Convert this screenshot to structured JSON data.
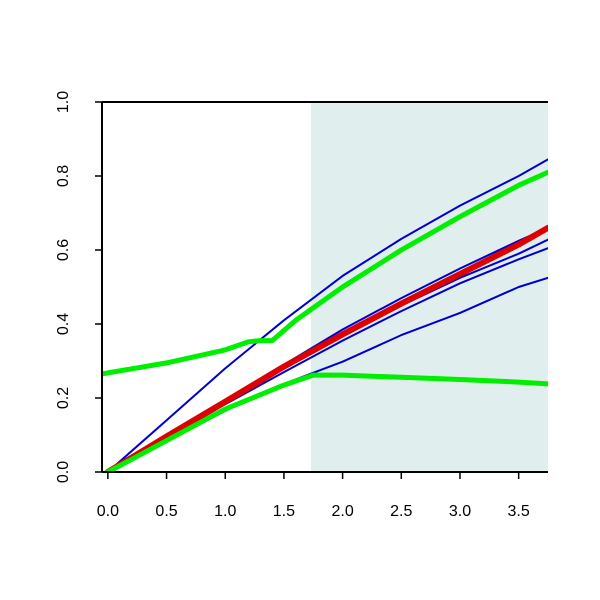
{
  "chart_data": {
    "type": "line",
    "title": "",
    "xlabel": "",
    "ylabel": "",
    "xlim": [
      -0.05,
      3.75
    ],
    "ylim": [
      0.0,
      1.0
    ],
    "grid": false,
    "legend": "none",
    "x_ticks": [
      0.0,
      0.5,
      1.0,
      1.5,
      2.0,
      2.5,
      3.0,
      3.5
    ],
    "x_tick_labels": [
      "0.0",
      "0.5",
      "1.0",
      "1.5",
      "2.0",
      "2.5",
      "3.0",
      "3.5"
    ],
    "y_ticks": [
      0.0,
      0.2,
      0.4,
      0.6,
      0.8,
      1.0
    ],
    "y_tick_labels": [
      "0.0",
      "0.2",
      "0.4",
      "0.6",
      "0.8",
      "1.0"
    ],
    "shaded_region": {
      "x_from": 1.73,
      "x_to": 3.75,
      "color": "#e0eeee"
    },
    "series": [
      {
        "color": "#0000cc",
        "width": 2,
        "x": [
          0.0,
          0.5,
          1.0,
          1.5,
          2.0,
          2.5,
          3.0,
          3.5,
          3.75
        ],
        "y": [
          0.0,
          0.14,
          0.28,
          0.41,
          0.53,
          0.63,
          0.72,
          0.8,
          0.845
        ]
      },
      {
        "color": "#0000cc",
        "width": 2,
        "x": [
          0.0,
          0.5,
          1.0,
          1.5,
          2.0,
          2.5,
          3.0,
          3.5,
          3.75
        ],
        "y": [
          0.0,
          0.098,
          0.195,
          0.29,
          0.385,
          0.47,
          0.55,
          0.625,
          0.66
        ]
      },
      {
        "color": "#0000cc",
        "width": 2,
        "x": [
          0.0,
          0.5,
          1.0,
          1.5,
          2.0,
          2.5,
          3.0,
          3.5,
          3.75
        ],
        "y": [
          0.0,
          0.095,
          0.19,
          0.28,
          0.37,
          0.45,
          0.525,
          0.59,
          0.628
        ]
      },
      {
        "color": "#0000cc",
        "width": 2,
        "x": [
          0.0,
          0.5,
          1.0,
          1.5,
          2.0,
          2.5,
          3.0,
          3.5,
          3.75
        ],
        "y": [
          0.0,
          0.092,
          0.183,
          0.27,
          0.355,
          0.435,
          0.51,
          0.575,
          0.605
        ]
      },
      {
        "color": "#0000cc",
        "width": 2,
        "x": [
          0.0,
          0.5,
          1.0,
          1.5,
          2.0,
          2.5,
          3.0,
          3.5,
          3.75
        ],
        "y": [
          0.0,
          0.082,
          0.165,
          0.238,
          0.298,
          0.37,
          0.43,
          0.5,
          0.525
        ]
      },
      {
        "color": "#dd0000",
        "width": 6,
        "x": [
          0.0,
          0.5,
          1.0,
          1.5,
          2.0,
          2.5,
          3.0,
          3.5,
          3.75
        ],
        "y": [
          0.0,
          0.096,
          0.19,
          0.285,
          0.372,
          0.455,
          0.535,
          0.615,
          0.66
        ]
      },
      {
        "color": "#00ee00",
        "width": 5,
        "x": [
          -0.05,
          0.5,
          1.0,
          1.2,
          1.3,
          1.4,
          1.6,
          2.0,
          2.5,
          3.0,
          3.5,
          3.75
        ],
        "y": [
          0.265,
          0.295,
          0.33,
          0.352,
          0.355,
          0.355,
          0.41,
          0.5,
          0.6,
          0.69,
          0.775,
          0.81
        ]
      },
      {
        "color": "#00ee00",
        "width": 5,
        "x": [
          0.0,
          0.5,
          1.0,
          1.5,
          1.75,
          2.0,
          2.5,
          3.0,
          3.5,
          3.75
        ],
        "y": [
          0.0,
          0.085,
          0.17,
          0.235,
          0.262,
          0.262,
          0.256,
          0.25,
          0.243,
          0.238
        ]
      }
    ]
  }
}
